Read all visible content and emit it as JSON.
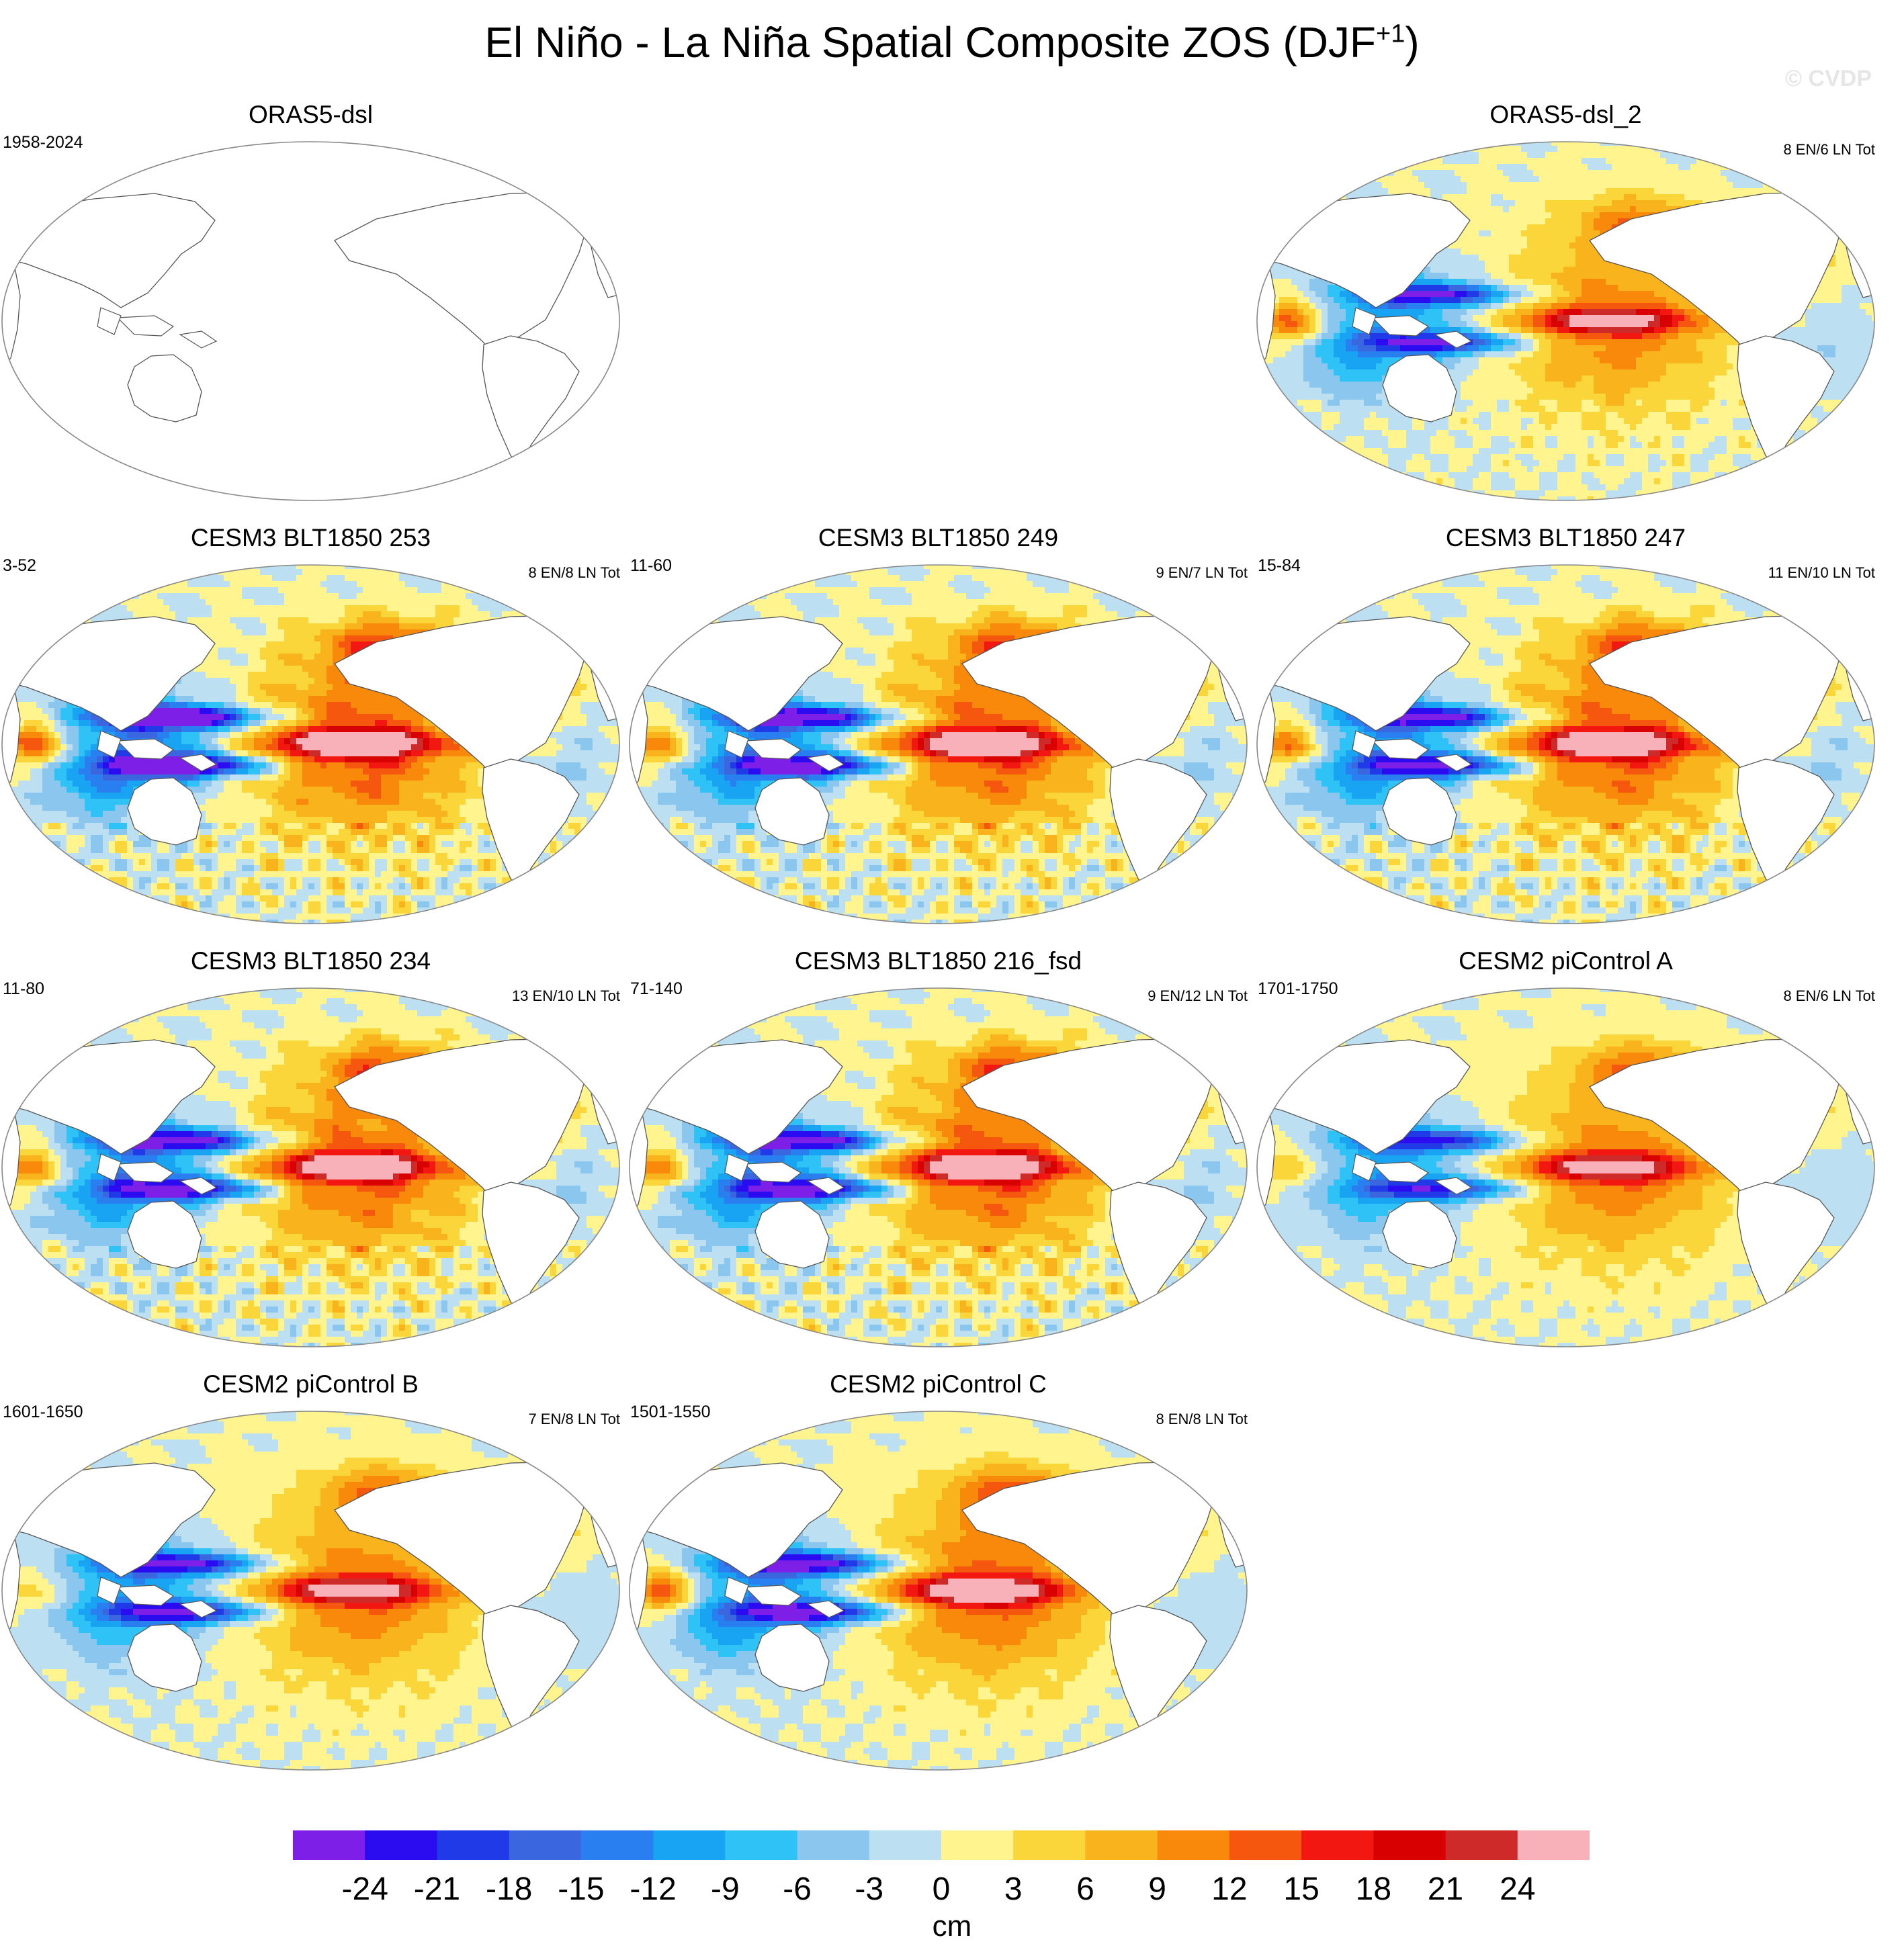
{
  "title_main": "El Niño - La Niña Spatial Composite ZOS (DJF",
  "title_sup": "+1",
  "title_close": ")",
  "watermark": "© CVDP",
  "chart_data": {
    "type": "heatmap",
    "variable": "ZOS",
    "season": "DJF+1",
    "projection": "Robinson, Pacific-centered",
    "units": "cm",
    "colorbar": {
      "levels": [
        -24,
        -21,
        -18,
        -15,
        -12,
        -9,
        -6,
        -3,
        0,
        3,
        6,
        9,
        12,
        15,
        18,
        21,
        24
      ],
      "colors": [
        "#7e1fe8",
        "#2b0bf0",
        "#1f3ae6",
        "#3a66e0",
        "#2a7ff0",
        "#18a4f2",
        "#2ec2f6",
        "#8ac6ee",
        "#bce0f2",
        "#fff48e",
        "#fbd63b",
        "#f9b41d",
        "#f8890b",
        "#f6570f",
        "#f31711",
        "#d80000",
        "#cf2a2a",
        "#f9b1b9"
      ]
    },
    "panels": [
      {
        "name": "ORAS5-dsl",
        "years": "1958-2024",
        "count": "",
        "empty": true
      },
      {
        "name": "ORAS5-dsl_2",
        "years": "",
        "count": "8 EN/6 LN Tot",
        "west_min": -21,
        "east_max": 20,
        "io": 14,
        "noise": 0.5
      },
      {
        "name": "CESM3 BLT1850 253",
        "years": "3-52",
        "count": "8 EN/8 LN Tot",
        "west_min": -28,
        "east_max": 26,
        "io": 15,
        "noise": 1.0
      },
      {
        "name": "CESM3 BLT1850 249",
        "years": "11-60",
        "count": "9 EN/7 LN Tot",
        "west_min": -25,
        "east_max": 25,
        "io": 12,
        "noise": 1.0
      },
      {
        "name": "CESM3 BLT1850 247",
        "years": "15-84",
        "count": "11 EN/10 LN Tot",
        "west_min": -23,
        "east_max": 25,
        "io": 13,
        "noise": 1.0
      },
      {
        "name": "CESM3 BLT1850 234",
        "years": "11-80",
        "count": "13 EN/10 LN Tot",
        "west_min": -24,
        "east_max": 24,
        "io": 12,
        "noise": 1.0
      },
      {
        "name": "CESM3 BLT1850 216_fsd",
        "years": "71-140",
        "count": "9 EN/12 LN Tot",
        "west_min": -24,
        "east_max": 25,
        "io": 12,
        "noise": 1.0
      },
      {
        "name": "CESM2 piControl A",
        "years": "1701-1750",
        "count": "8 EN/6 LN Tot",
        "west_min": -19,
        "east_max": 21,
        "io": 6,
        "noise": 0.35
      },
      {
        "name": "CESM2 piControl B",
        "years": "1601-1650",
        "count": "7 EN/8 LN Tot",
        "west_min": -22,
        "east_max": 21,
        "io": 5,
        "noise": 0.35
      },
      {
        "name": "CESM2 piControl C",
        "years": "1501-1550",
        "count": "8 EN/8 LN Tot",
        "west_min": -24,
        "east_max": 24,
        "io": 15,
        "noise": 0.35
      }
    ]
  }
}
